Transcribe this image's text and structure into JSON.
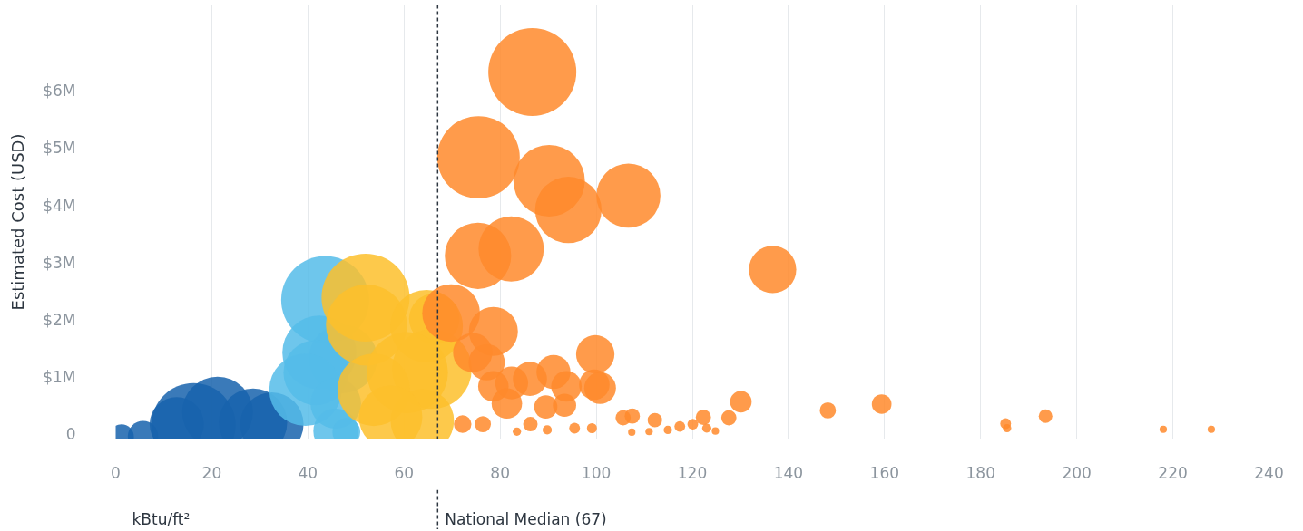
{
  "chart_data": {
    "type": "bubble",
    "xlabel": "kBtu/ft²",
    "ylabel": "Estimated Cost (USD)",
    "xlim": [
      0,
      240
    ],
    "xticks": [
      0,
      20,
      40,
      60,
      80,
      100,
      120,
      140,
      160,
      180,
      200,
      220,
      240
    ],
    "ylim": [
      -0.08,
      7.5
    ],
    "yticks": [
      0,
      {
        "value": 1,
        "label": "$1M"
      },
      {
        "value": 2,
        "label": "$2M"
      },
      {
        "value": 3,
        "label": "$3M"
      },
      {
        "value": 4,
        "label": "$4M"
      },
      {
        "value": 5,
        "label": "$5M"
      },
      {
        "value": 6,
        "label": "$6M"
      }
    ],
    "grid": "x",
    "ref_lines": [
      {
        "axis": "x",
        "value": 67,
        "label": "National Median (67)",
        "color": "#2d3640",
        "line_style": "dashed"
      }
    ],
    "series": [
      {
        "color": "#1763ad",
        "x": [
          1.2,
          5.7,
          16.2,
          21.2,
          28.6,
          32.5,
          12.7
        ],
        "values": [
          -0.04,
          -0.03,
          0.16,
          0.39,
          0.21,
          0.18,
          0.18
        ],
        "sizes": [
          0.08,
          0.12,
          0.92,
          0.65,
          0.6,
          0.52,
          0.38
        ]
      },
      {
        "color": "#55bce9",
        "x": [
          43.6,
          42.4,
          47.3,
          41.7,
          39.5,
          45.8,
          45.8,
          48.0
        ],
        "values": [
          2.35,
          1.43,
          1.32,
          1.08,
          0.78,
          0.54,
          0.06,
          0.04
        ],
        "sizes": [
          1.0,
          0.71,
          0.61,
          0.55,
          0.68,
          0.33,
          0.26,
          0.1
        ]
      },
      {
        "color": "#fdc02b",
        "x": [
          52.0,
          52.2,
          66.3,
          64.7,
          65.8,
          63.8,
          60.7,
          53.7,
          57.2
        ],
        "values": [
          2.39,
          1.91,
          2.02,
          1.89,
          1.14,
          0.24,
          1.08,
          0.78,
          0.3
        ],
        "sizes": [
          1.0,
          0.85,
          0.33,
          0.68,
          0.82,
          0.52,
          0.85,
          0.68,
          0.52
        ]
      },
      {
        "color": "#ff8a2b",
        "x": [
          86.7,
          75.5,
          90.2,
          94.2,
          106.7,
          75.4,
          82.3,
          136.7,
          69.8,
          78.6,
          99.8,
          100.8,
          99.6,
          91.1,
          93.8,
          86.2,
          82.4,
          77.2,
          74.3,
          78.6,
          81.4,
          89.5,
          93.4,
          130.1,
          127.6,
          148.2,
          122.3,
          112.2,
          107.5,
          105.6,
          114.9,
          117.4,
          120.1,
          124.8,
          99.1,
          107.4,
          111.0,
          83.5,
          89.8,
          95.5,
          72.2,
          76.4,
          86.3,
          123.0,
          159.4,
          185.2,
          185.5,
          193.5,
          218.0,
          228.0
        ],
        "values": [
          6.33,
          4.84,
          4.43,
          3.92,
          4.17,
          3.12,
          3.24,
          2.88,
          2.12,
          1.8,
          1.4,
          0.81,
          0.87,
          1.09,
          0.84,
          0.97,
          0.9,
          1.26,
          1.43,
          0.84,
          0.54,
          0.48,
          0.51,
          0.57,
          0.29,
          0.42,
          0.3,
          0.25,
          0.32,
          0.29,
          0.08,
          0.14,
          0.18,
          0.06,
          0.11,
          0.04,
          0.05,
          0.05,
          0.08,
          0.11,
          0.18,
          0.18,
          0.18,
          0.11,
          0.53,
          0.19,
          0.11,
          0.32,
          0.09,
          0.09
        ],
        "sizes": [
          1.0,
          0.88,
          0.66,
          0.57,
          0.53,
          0.57,
          0.55,
          0.29,
          0.43,
          0.31,
          0.19,
          0.13,
          0.12,
          0.15,
          0.12,
          0.15,
          0.14,
          0.17,
          0.2,
          0.12,
          0.12,
          0.07,
          0.07,
          0.06,
          0.03,
          0.034,
          0.03,
          0.027,
          0.03,
          0.03,
          0.009,
          0.015,
          0.015,
          0.007,
          0.013,
          0.007,
          0.007,
          0.009,
          0.011,
          0.015,
          0.04,
          0.034,
          0.027,
          0.011,
          0.05,
          0.015,
          0.009,
          0.024,
          0.007,
          0.007
        ]
      }
    ]
  }
}
